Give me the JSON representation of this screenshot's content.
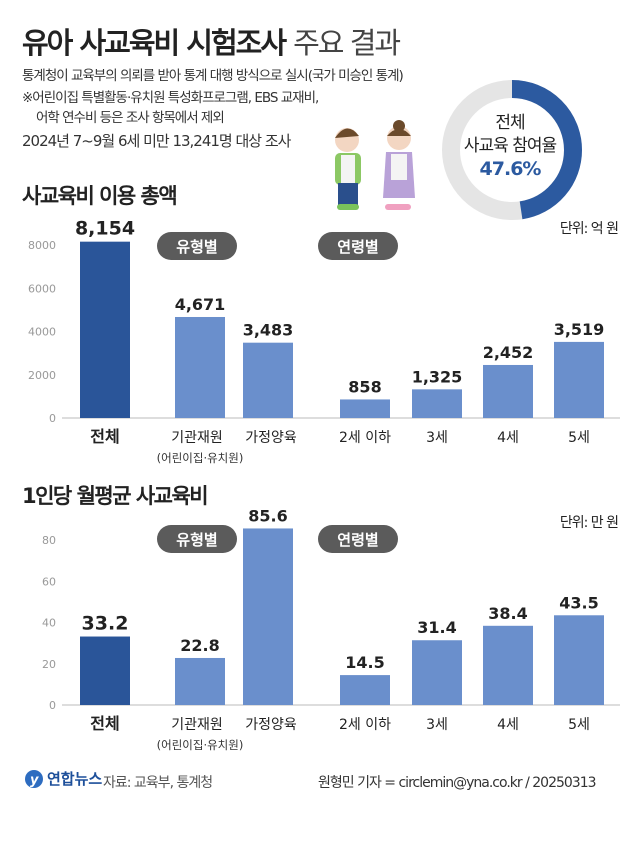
{
  "title": {
    "bold": "유아 사교육비 시험조사",
    "light": "주요 결과"
  },
  "notes": [
    "통계청이 교육부의 의뢰를 받아 통계 대행 방식으로 실시(국가 미승인 통계)",
    "※어린이집 특별활동·유치원 특성화프로그램, EBS 교재비,",
    "어학 연수비 등은 조사 항목에서 제외",
    "2024년 7~9월 6세 미만 13,241명 대상 조사"
  ],
  "donut": {
    "line1": "전체",
    "line2": "사교육 참여율",
    "value_label": "47.6%",
    "value": 47.6,
    "color": "#2c5aa0",
    "track": "#e5e5e5"
  },
  "colors": {
    "total": "#2a5599",
    "other": "#6a8fcc",
    "badge": "#5b5b5b"
  },
  "chart_data": [
    {
      "type": "bar",
      "title": "사교육비 이용 총액",
      "unit": "단위: 억 원",
      "ylim": [
        0,
        8000
      ],
      "yticks": [
        "0",
        "2000",
        "4000",
        "6000",
        "8000"
      ],
      "groups": [
        {
          "badge": "",
          "categories": [
            "전체"
          ],
          "values": [
            8154
          ],
          "labels": [
            "8,154"
          ]
        },
        {
          "badge": "유형별",
          "categories": [
            "기관재원",
            "가정양육"
          ],
          "values": [
            4671,
            3483
          ],
          "labels": [
            "4,671",
            "3,483"
          ]
        },
        {
          "badge": "연령별",
          "categories": [
            "2세 이하",
            "3세",
            "4세",
            "5세"
          ],
          "values": [
            858,
            1325,
            2452,
            3519
          ],
          "labels": [
            "858",
            "1,325",
            "2,452",
            "3,519"
          ]
        }
      ],
      "sublabel": "(어린이집·유치원)"
    },
    {
      "type": "bar",
      "title": "1인당 월평균 사교육비",
      "unit": "단위: 만 원",
      "ylim": [
        0,
        80
      ],
      "yticks": [
        "0",
        "20",
        "40",
        "60",
        "80"
      ],
      "groups": [
        {
          "badge": "",
          "categories": [
            "전체"
          ],
          "values": [
            33.2
          ],
          "labels": [
            "33.2"
          ]
        },
        {
          "badge": "유형별",
          "categories": [
            "기관재원",
            "가정양육"
          ],
          "values": [
            22.8,
            85.6
          ],
          "labels": [
            "22.8",
            "85.6"
          ]
        },
        {
          "badge": "연령별",
          "categories": [
            "2세 이하",
            "3세",
            "4세",
            "5세"
          ],
          "values": [
            14.5,
            31.4,
            38.4,
            43.5
          ],
          "labels": [
            "14.5",
            "31.4",
            "38.4",
            "43.5"
          ]
        }
      ],
      "sublabel": "(어린이집·유치원)"
    }
  ],
  "footer": {
    "logo": "연합뉴스",
    "source": "자료: 교육부, 통계청",
    "byline": "원형민 기자 = circlemin@yna.co.kr / 20250313"
  }
}
